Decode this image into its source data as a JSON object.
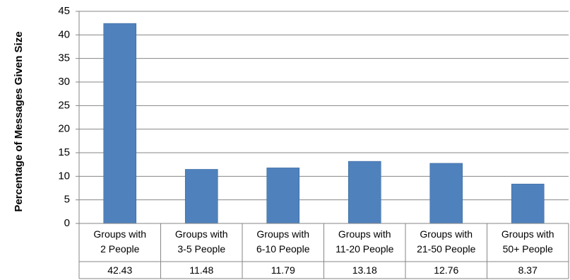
{
  "chart_data": {
    "type": "bar",
    "title": "",
    "xlabel": "",
    "ylabel": "Percentage of Messages Given Size",
    "ylim": [
      0,
      45
    ],
    "yticks": [
      0,
      5,
      10,
      15,
      20,
      25,
      30,
      35,
      40,
      45
    ],
    "grid": true,
    "legend": "none",
    "data_table": true,
    "categories": [
      [
        "Groups with",
        "2 People"
      ],
      [
        "Groups with",
        "3-5 People"
      ],
      [
        "Groups with",
        "6-10 People"
      ],
      [
        "Groups with",
        "11-20 People"
      ],
      [
        "Groups with",
        "21-50 People"
      ],
      [
        "Groups with",
        "50+ People"
      ]
    ],
    "values": [
      42.43,
      11.48,
      11.79,
      13.18,
      12.76,
      8.37
    ],
    "value_labels": [
      "42.43",
      "11.48",
      "11.79",
      "13.18",
      "12.76",
      "8.37"
    ],
    "colors": {
      "bar": "#4F81BD",
      "bar_edge": "#3A6AA0",
      "grid": "#868686",
      "axis": "#868686"
    }
  }
}
